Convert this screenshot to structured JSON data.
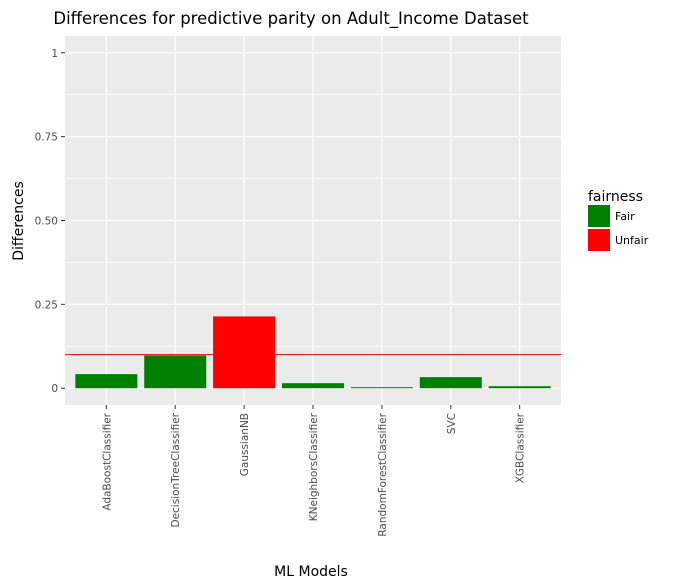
{
  "chart_data": {
    "type": "bar",
    "title": "Differences for predictive parity on Adult_Income Dataset",
    "xlabel": "ML Models",
    "ylabel": "Differences",
    "categories": [
      "AdaBoostClassifier",
      "DecisionTreeClassifier",
      "GaussianNB",
      "KNeighborsClassifier",
      "RandomForestClassifier",
      "SVC",
      "XGBClassifier"
    ],
    "values": [
      0.042,
      0.098,
      0.214,
      0.015,
      0.003,
      0.033,
      0.006
    ],
    "fairness": [
      "Fair",
      "Fair",
      "Unfair",
      "Fair",
      "Fair",
      "Fair",
      "Fair"
    ],
    "ylim": [
      -0.05,
      1.05
    ],
    "yticks": [
      0,
      0.25,
      0.5,
      0.75,
      1
    ],
    "ytick_labels": [
      "0",
      "0.25",
      "0.50",
      "0.75",
      "1"
    ],
    "threshold": 0.1,
    "threshold_color": "#ff0000",
    "grid": true,
    "panel_background": "#ebebeb",
    "grid_color": "#ffffff",
    "legend": {
      "title": "fairness",
      "position": "right",
      "entries": [
        {
          "label": "Fair",
          "color": "#008000"
        },
        {
          "label": "Unfair",
          "color": "#ff0000"
        }
      ]
    }
  }
}
